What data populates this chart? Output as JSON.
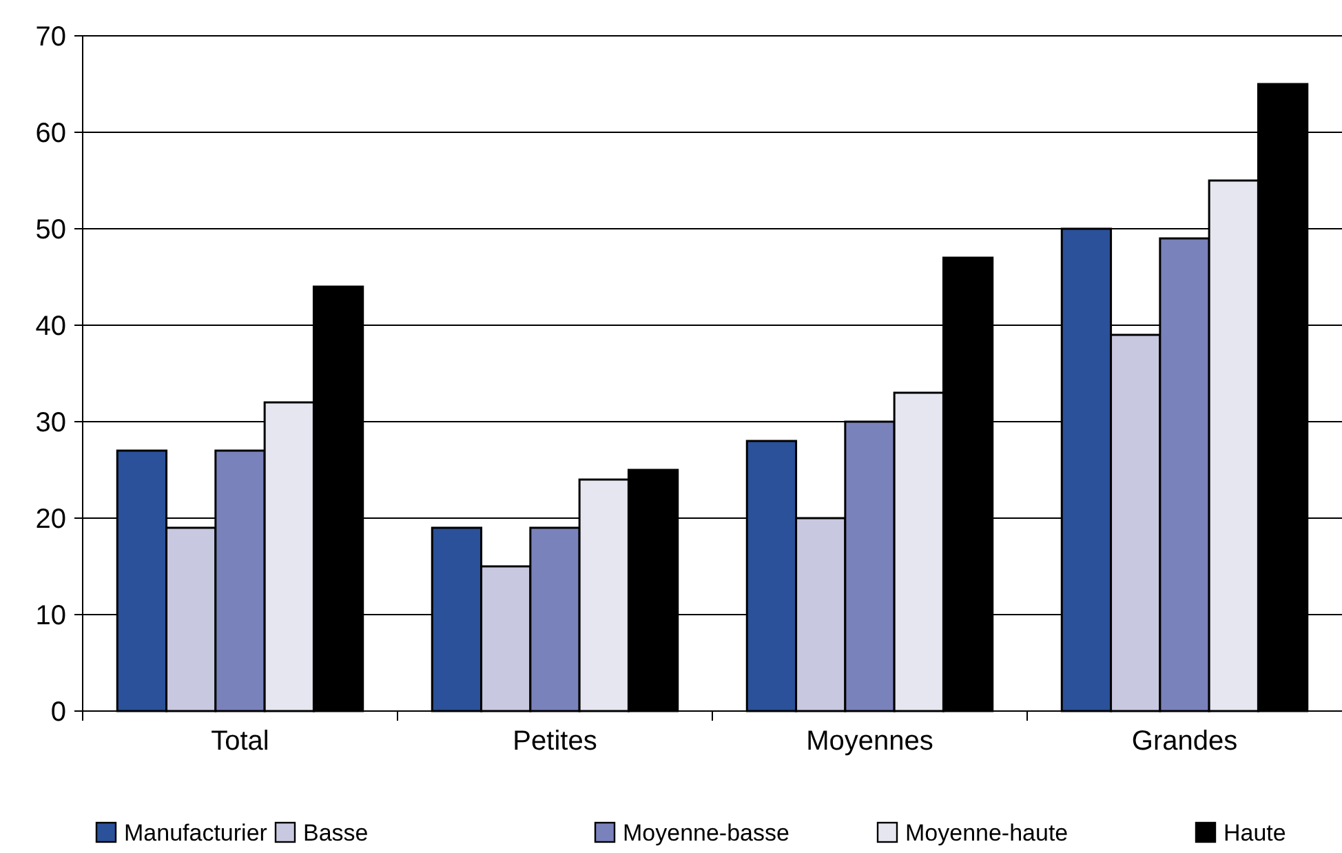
{
  "chart_data": {
    "type": "bar",
    "categories": [
      "Total",
      "Petites",
      "Moyennes",
      "Grandes"
    ],
    "series": [
      {
        "name": "Manufacturier",
        "color": "#2a5199",
        "values": [
          27,
          19,
          28,
          50
        ]
      },
      {
        "name": "Basse",
        "color": "#c8c8e0",
        "values": [
          19,
          15,
          20,
          39
        ]
      },
      {
        "name": "Moyenne-basse",
        "color": "#7a82bb",
        "values": [
          27,
          19,
          30,
          49
        ]
      },
      {
        "name": "Moyenne-haute",
        "color": "#e6e6f0",
        "values": [
          32,
          24,
          33,
          55
        ]
      },
      {
        "name": "Haute",
        "color": "#000000",
        "values": [
          44,
          25,
          47,
          65
        ]
      }
    ],
    "ylim": [
      0,
      70
    ],
    "yticks": [
      0,
      10,
      20,
      30,
      40,
      50,
      60,
      70
    ],
    "grid": "y",
    "legend": "bottom"
  }
}
